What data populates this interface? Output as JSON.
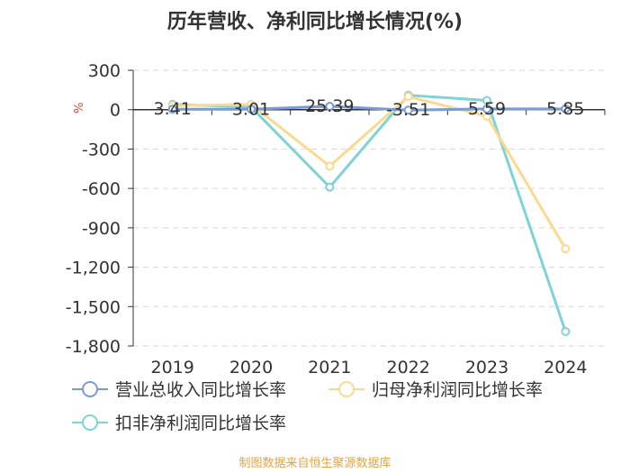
{
  "chart_data": {
    "type": "line",
    "title": "历年营收、净利同比增长情况(%)",
    "ylabel": "%",
    "xlabel": "",
    "categories": [
      "2019",
      "2020",
      "2021",
      "2022",
      "2023",
      "2024"
    ],
    "ylim": [
      -1800,
      300
    ],
    "yticks": [
      300,
      0,
      -300,
      -600,
      -900,
      -1200,
      -1500,
      -1800
    ],
    "ytick_labels": [
      "300",
      "0",
      "-300",
      "-600",
      "-900",
      "-1,200",
      "-1,500",
      "-1,800"
    ],
    "grid": true,
    "legend_position": "bottom",
    "series": [
      {
        "name": "营业总收入同比增长率",
        "color": "#7b9bd1",
        "values": [
          3.41,
          3.01,
          25.39,
          -3.51,
          5.59,
          5.85
        ],
        "labels": [
          "3.41",
          "3.01",
          "25.39",
          "-3.51",
          "5.59",
          "5.85"
        ]
      },
      {
        "name": "归母净利润同比增长率",
        "color": "#fbd98f",
        "values": [
          30,
          40,
          -430,
          100,
          -50,
          -1060
        ]
      },
      {
        "name": "扣非净利润同比增长率",
        "color": "#7fd3d6",
        "values": [
          40,
          20,
          -590,
          110,
          70,
          -1690
        ]
      }
    ]
  },
  "footer": {
    "text": "制图数据来自恒生聚源数据库",
    "color": "#e8a33d"
  }
}
